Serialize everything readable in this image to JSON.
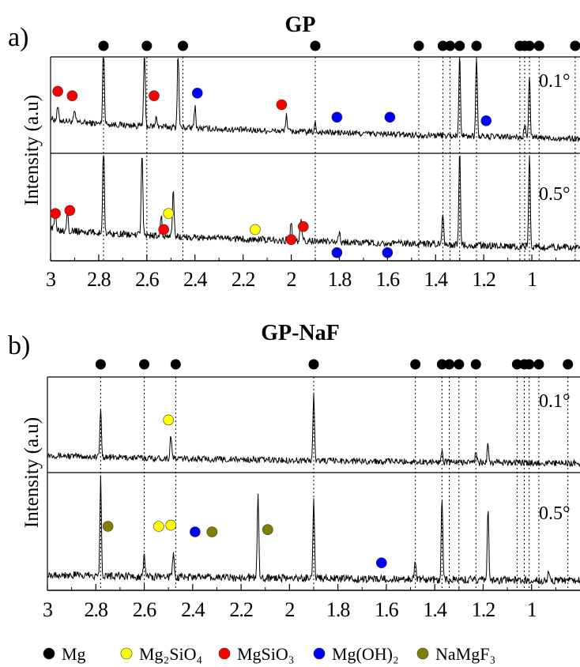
{
  "phases": [
    {
      "key": "mg",
      "label": "Mg",
      "color": "#000000"
    },
    {
      "key": "mg2sio4",
      "label": "Mg₂SiO₄",
      "color": "#ffff00"
    },
    {
      "key": "mgsio3",
      "label": "MgSiO₃",
      "color": "#ff0000"
    },
    {
      "key": "mgoh2",
      "label": "Mg(OH)₂",
      "color": "#0000ff"
    },
    {
      "key": "namgf3",
      "label": "NaMgF₃",
      "color": "#808000"
    }
  ],
  "chart_data": [
    {
      "type": "line",
      "panel_letter": "a)",
      "title": "GP",
      "xlabel": "",
      "ylabel": "Intensity (a.u)",
      "x_axis": "d-spacing",
      "xlim": [
        3.0,
        0.8
      ],
      "x_reversed": true,
      "ticks": [
        "3",
        "2.8",
        "2.6",
        "2.4",
        "2.2",
        "2",
        "1.8",
        "1.6",
        "1.4",
        "1.2",
        "1"
      ],
      "mg_reference_positions": [
        2.78,
        2.6,
        2.45,
        1.9,
        1.47,
        1.37,
        1.34,
        1.3,
        1.23,
        1.05,
        1.03,
        1.01,
        0.97,
        0.82
      ],
      "series": [
        {
          "name": "0.1°",
          "baseline_start": 0.35,
          "baseline_end": 0.12,
          "peaks": [
            {
              "x": 2.97,
              "h": 0.15
            },
            {
              "x": 2.9,
              "h": 0.12
            },
            {
              "x": 2.78,
              "h": 1.0
            },
            {
              "x": 2.61,
              "h": 0.9
            },
            {
              "x": 2.56,
              "h": 0.12
            },
            {
              "x": 2.47,
              "h": 0.95
            },
            {
              "x": 2.4,
              "h": 0.25
            },
            {
              "x": 2.02,
              "h": 0.2
            },
            {
              "x": 1.9,
              "h": 0.1
            },
            {
              "x": 1.3,
              "h": 0.95
            },
            {
              "x": 1.23,
              "h": 0.95
            },
            {
              "x": 1.01,
              "h": 0.7
            },
            {
              "x": 1.03,
              "h": 0.15
            }
          ],
          "markers": [
            {
              "phase": "mgsio3",
              "x": 2.97,
              "y": 0.65
            },
            {
              "phase": "mgsio3",
              "x": 2.91,
              "y": 0.6
            },
            {
              "phase": "mgsio3",
              "x": 2.57,
              "y": 0.6
            },
            {
              "phase": "mgoh2",
              "x": 2.39,
              "y": 0.63
            },
            {
              "phase": "mgsio3",
              "x": 2.04,
              "y": 0.5
            },
            {
              "phase": "mgoh2",
              "x": 1.81,
              "y": 0.36
            },
            {
              "phase": "mgoh2",
              "x": 1.59,
              "y": 0.36
            },
            {
              "phase": "mgoh2",
              "x": 1.19,
              "y": 0.32
            }
          ]
        },
        {
          "name": "0.5°",
          "baseline_start": 0.3,
          "baseline_end": 0.1,
          "peaks": [
            {
              "x": 2.98,
              "h": 0.2
            },
            {
              "x": 2.93,
              "h": 0.22
            },
            {
              "x": 2.78,
              "h": 1.0
            },
            {
              "x": 2.62,
              "h": 0.85
            },
            {
              "x": 2.54,
              "h": 0.2
            },
            {
              "x": 2.49,
              "h": 0.45
            },
            {
              "x": 2.0,
              "h": 0.18
            },
            {
              "x": 1.96,
              "h": 0.22
            },
            {
              "x": 1.8,
              "h": 0.08
            },
            {
              "x": 1.37,
              "h": 0.3
            },
            {
              "x": 1.3,
              "h": 0.95
            },
            {
              "x": 1.01,
              "h": 0.95
            }
          ],
          "markers": [
            {
              "phase": "mgsio3",
              "x": 2.98,
              "y": 0.44
            },
            {
              "phase": "mgsio3",
              "x": 2.92,
              "y": 0.47
            },
            {
              "phase": "mg2sio4",
              "x": 2.51,
              "y": 0.44
            },
            {
              "phase": "mgsio3",
              "x": 2.53,
              "y": 0.28
            },
            {
              "phase": "mg2sio4",
              "x": 2.15,
              "y": 0.28
            },
            {
              "phase": "mgsio3",
              "x": 2.0,
              "y": 0.18
            },
            {
              "phase": "mgsio3",
              "x": 1.95,
              "y": 0.31
            },
            {
              "phase": "mgoh2",
              "x": 1.81,
              "y": 0.05
            },
            {
              "phase": "mgoh2",
              "x": 1.6,
              "y": 0.05
            }
          ]
        }
      ]
    },
    {
      "type": "line",
      "panel_letter": "b)",
      "title": "GP-NaF",
      "xlabel": "",
      "ylabel": "Intensity (a.u)",
      "x_axis": "d-spacing",
      "xlim": [
        3.0,
        0.8
      ],
      "x_reversed": true,
      "ticks": [
        "3",
        "2.8",
        "2.6",
        "2.4",
        "2.2",
        "2",
        "1.8",
        "1.6",
        "1.4",
        "1.2",
        "1"
      ],
      "mg_reference_positions": [
        2.78,
        2.6,
        2.47,
        1.9,
        1.48,
        1.37,
        1.34,
        1.3,
        1.23,
        1.06,
        1.03,
        1.01,
        0.97,
        0.85
      ],
      "series": [
        {
          "name": "0.1°",
          "baseline_start": 0.16,
          "baseline_end": 0.06,
          "peaks": [
            {
              "x": 2.78,
              "h": 0.55
            },
            {
              "x": 2.49,
              "h": 0.27
            },
            {
              "x": 1.9,
              "h": 0.75
            },
            {
              "x": 1.37,
              "h": 0.15
            },
            {
              "x": 1.23,
              "h": 0.12
            },
            {
              "x": 1.18,
              "h": 0.2
            }
          ],
          "markers": [
            {
              "phase": "mg2sio4",
              "x": 2.5,
              "y": 0.55
            }
          ]
        },
        {
          "name": "0.5°",
          "baseline_start": 0.12,
          "baseline_end": 0.06,
          "peaks": [
            {
              "x": 2.78,
              "h": 0.9
            },
            {
              "x": 2.6,
              "h": 0.2
            },
            {
              "x": 2.48,
              "h": 0.2
            },
            {
              "x": 2.13,
              "h": 0.75
            },
            {
              "x": 1.9,
              "h": 0.72
            },
            {
              "x": 1.48,
              "h": 0.15
            },
            {
              "x": 1.37,
              "h": 0.75
            },
            {
              "x": 1.18,
              "h": 0.65
            },
            {
              "x": 0.93,
              "h": 0.1
            }
          ],
          "markers": [
            {
              "phase": "namgf3",
              "x": 2.75,
              "y": 0.55
            },
            {
              "phase": "mg2sio4",
              "x": 2.54,
              "y": 0.55
            },
            {
              "phase": "mg2sio4",
              "x": 2.49,
              "y": 0.56
            },
            {
              "phase": "mgoh2",
              "x": 2.39,
              "y": 0.5
            },
            {
              "phase": "namgf3",
              "x": 2.32,
              "y": 0.5
            },
            {
              "phase": "namgf3",
              "x": 2.09,
              "y": 0.52
            },
            {
              "phase": "mgoh2",
              "x": 1.62,
              "y": 0.22
            }
          ]
        }
      ]
    }
  ]
}
